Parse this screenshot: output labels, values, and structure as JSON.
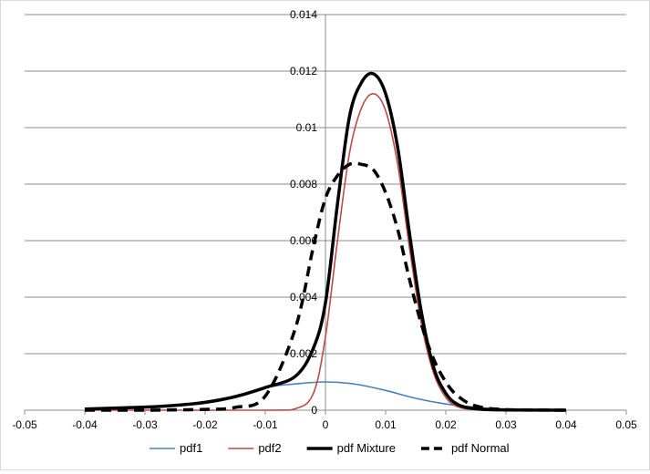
{
  "chart_data": {
    "type": "line",
    "title": "",
    "xlabel": "",
    "ylabel": "",
    "xlim": [
      -0.05,
      0.05
    ],
    "ylim": [
      0,
      0.014
    ],
    "x_ticks": [
      -0.05,
      -0.04,
      -0.03,
      -0.02,
      -0.01,
      0,
      0.01,
      0.02,
      0.03,
      0.04,
      0.05
    ],
    "x_tick_labels": [
      "-0.05",
      "-0.04",
      "-0.03",
      "-0.02",
      "-0.01",
      "0",
      "0.01",
      "0.02",
      "0.03",
      "0.04",
      "0.05"
    ],
    "y_ticks": [
      0,
      0.002,
      0.004,
      0.006,
      0.008,
      0.01,
      0.012,
      0.014
    ],
    "y_tick_labels": [
      "0",
      "0.002",
      "0.004",
      "0.006",
      "0.008",
      "0.01",
      "0.012",
      "0.014"
    ],
    "grid": "horizontal",
    "legend_position": "bottom",
    "series": [
      {
        "name": "pdf1",
        "color": "#4a7ebb",
        "style": "solid",
        "x": [
          -0.04,
          -0.03,
          -0.025,
          -0.02,
          -0.015,
          -0.01,
          -0.005,
          0,
          0.005,
          0.01,
          0.015,
          0.02,
          0.025,
          0.03,
          0.035,
          0.04
        ],
        "y": [
          4e-05,
          0.0001,
          0.00015,
          0.00024,
          0.00045,
          0.0008,
          0.00093,
          0.001,
          0.00092,
          0.0007,
          0.00042,
          0.00022,
          0.0001,
          4e-05,
          1e-05,
          0
        ]
      },
      {
        "name": "pdf2",
        "color": "#be4b48",
        "style": "solid",
        "x": [
          -0.04,
          -0.01,
          -0.005,
          -0.002,
          0,
          0.002,
          0.004,
          0.006,
          0.008,
          0.01,
          0.012,
          0.014,
          0.016,
          0.018,
          0.02,
          0.022,
          0.025,
          0.03,
          0.04
        ],
        "y": [
          0,
          0,
          5e-05,
          0.0006,
          0.0026,
          0.006,
          0.0091,
          0.0107,
          0.0112,
          0.0106,
          0.0087,
          0.0057,
          0.003,
          0.0013,
          0.00045,
          0.00012,
          2e-05,
          0,
          0
        ]
      },
      {
        "name": "pdf Mixture",
        "color": "#000000",
        "style": "solid",
        "x": [
          -0.04,
          -0.03,
          -0.025,
          -0.02,
          -0.015,
          -0.01,
          -0.005,
          -0.002,
          0,
          0.002,
          0.004,
          0.006,
          0.008,
          0.01,
          0.012,
          0.014,
          0.016,
          0.018,
          0.02,
          0.022,
          0.025,
          0.03,
          0.04
        ],
        "y": [
          4e-05,
          0.00011,
          0.00017,
          0.00028,
          0.00048,
          0.0008,
          0.0012,
          0.0022,
          0.0038,
          0.0073,
          0.0104,
          0.0116,
          0.0119,
          0.0112,
          0.0093,
          0.0062,
          0.0034,
          0.0015,
          0.0006,
          0.0002,
          5e-05,
          1e-05,
          0
        ]
      },
      {
        "name": "pdf Normal",
        "color": "#000000",
        "style": "dashed",
        "x": [
          -0.04,
          -0.03,
          -0.02,
          -0.015,
          -0.01,
          -0.005,
          -0.002,
          0,
          0.002,
          0.004,
          0.006,
          0.008,
          0.01,
          0.012,
          0.014,
          0.016,
          0.018,
          0.02,
          0.022,
          0.025,
          0.03,
          0.04
        ],
        "y": [
          0,
          0,
          3e-05,
          0.0001,
          0.0005,
          0.0029,
          0.0058,
          0.0075,
          0.0083,
          0.0087,
          0.0087,
          0.0085,
          0.0077,
          0.0064,
          0.0046,
          0.003,
          0.0018,
          0.001,
          0.0005,
          0.00015,
          2e-05,
          0
        ]
      }
    ]
  }
}
